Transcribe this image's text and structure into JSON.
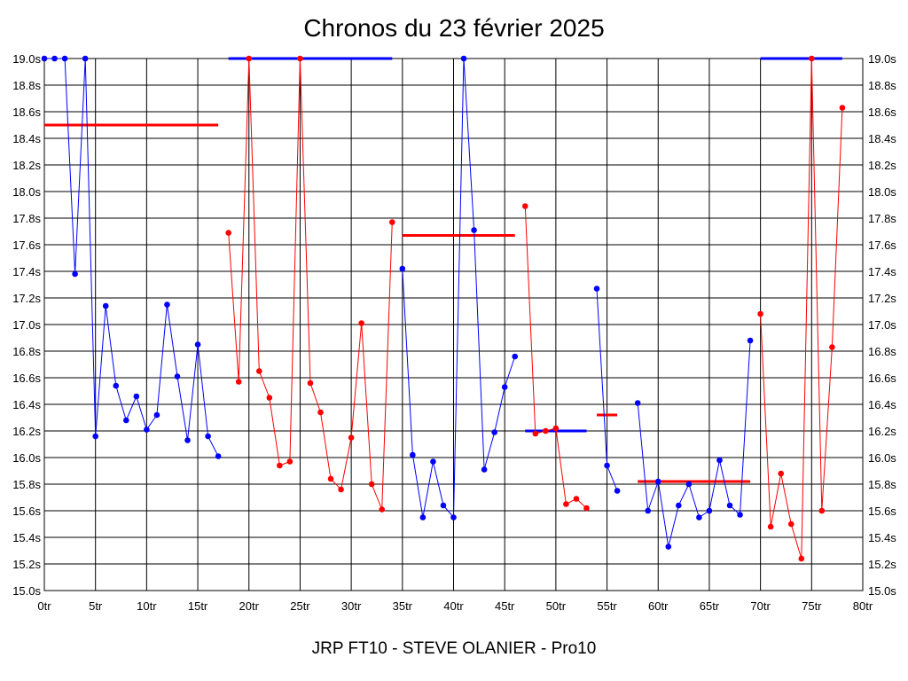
{
  "title": "Chronos du 23 février 2025",
  "footer": "JRP FT10 - STEVE OLANIER - Pro10",
  "chart_data": {
    "type": "line",
    "title": "Chronos du 23 février 2025",
    "xlabel": "",
    "ylabel": "",
    "xlim": [
      0,
      80
    ],
    "ylim": [
      15.0,
      19.0
    ],
    "grid": true,
    "x_ticks": [
      0,
      5,
      10,
      15,
      20,
      25,
      30,
      35,
      40,
      45,
      50,
      55,
      60,
      65,
      70,
      75,
      80
    ],
    "x_tick_labels": [
      "0tr",
      "5tr",
      "10tr",
      "15tr",
      "20tr",
      "25tr",
      "30tr",
      "35tr",
      "40tr",
      "45tr",
      "50tr",
      "55tr",
      "60tr",
      "65tr",
      "70tr",
      "75tr",
      "80tr"
    ],
    "y_ticks": [
      15.0,
      15.2,
      15.4,
      15.6,
      15.8,
      16.0,
      16.2,
      16.4,
      16.6,
      16.8,
      17.0,
      17.2,
      17.4,
      17.6,
      17.8,
      18.0,
      18.2,
      18.4,
      18.6,
      18.8,
      19.0
    ],
    "y_tick_labels": [
      "15.0s",
      "15.2s",
      "15.4s",
      "15.6s",
      "15.8s",
      "16.0s",
      "16.2s",
      "16.4s",
      "16.6s",
      "16.8s",
      "17.0s",
      "17.2s",
      "17.4s",
      "17.6s",
      "17.8s",
      "18.0s",
      "18.2s",
      "18.4s",
      "18.6s",
      "18.8s",
      "19.0s"
    ],
    "colors": {
      "blue": "#0000ff",
      "red": "#ff0000"
    },
    "series": [
      {
        "color": "#0000ff",
        "points": [
          [
            0,
            19.0
          ],
          [
            1,
            19.0
          ],
          [
            2,
            19.0
          ],
          [
            3,
            17.38
          ],
          [
            4,
            19.0
          ],
          [
            5,
            16.16
          ],
          [
            6,
            17.14
          ],
          [
            7,
            16.54
          ],
          [
            8,
            16.28
          ],
          [
            9,
            16.46
          ],
          [
            10,
            16.21
          ],
          [
            11,
            16.32
          ],
          [
            12,
            17.15
          ],
          [
            13,
            16.61
          ],
          [
            14,
            16.13
          ],
          [
            15,
            16.85
          ],
          [
            16,
            16.16
          ],
          [
            17,
            16.01
          ]
        ]
      },
      {
        "color": "#ff0000",
        "points": [
          [
            18,
            17.69
          ],
          [
            19,
            16.57
          ],
          [
            20,
            19.0
          ],
          [
            21,
            16.65
          ],
          [
            22,
            16.45
          ],
          [
            23,
            15.94
          ],
          [
            24,
            15.97
          ],
          [
            25,
            19.0
          ],
          [
            26,
            16.56
          ],
          [
            27,
            16.34
          ],
          [
            28,
            15.84
          ],
          [
            29,
            15.76
          ],
          [
            30,
            16.15
          ],
          [
            31,
            17.01
          ],
          [
            32,
            15.8
          ],
          [
            33,
            15.61
          ],
          [
            34,
            17.77
          ]
        ]
      },
      {
        "color": "#0000ff",
        "points": [
          [
            35,
            17.42
          ],
          [
            36,
            16.02
          ],
          [
            37,
            15.55
          ],
          [
            38,
            15.97
          ],
          [
            39,
            15.64
          ],
          [
            40,
            15.55
          ],
          [
            41,
            19.0
          ],
          [
            42,
            17.71
          ],
          [
            43,
            15.91
          ],
          [
            44,
            16.19
          ],
          [
            45,
            16.53
          ],
          [
            46,
            16.76
          ]
        ]
      },
      {
        "color": "#ff0000",
        "points": [
          [
            47,
            17.89
          ],
          [
            48,
            16.18
          ],
          [
            49,
            16.2
          ],
          [
            50,
            16.22
          ],
          [
            51,
            15.65
          ],
          [
            52,
            15.69
          ],
          [
            53,
            15.62
          ]
        ]
      },
      {
        "color": "#0000ff",
        "points": [
          [
            54,
            17.27
          ],
          [
            55,
            15.94
          ],
          [
            56,
            15.75
          ]
        ]
      },
      {
        "color": "#0000ff",
        "points": [
          [
            58,
            16.41
          ],
          [
            59,
            15.6
          ],
          [
            60,
            15.82
          ],
          [
            61,
            15.33
          ],
          [
            62,
            15.64
          ],
          [
            63,
            15.8
          ],
          [
            64,
            15.55
          ],
          [
            65,
            15.6
          ],
          [
            66,
            15.98
          ],
          [
            67,
            15.64
          ],
          [
            68,
            15.57
          ],
          [
            69,
            16.88
          ]
        ]
      },
      {
        "color": "#ff0000",
        "points": [
          [
            70,
            17.08
          ],
          [
            71,
            15.48
          ],
          [
            72,
            15.88
          ],
          [
            73,
            15.5
          ],
          [
            74,
            15.24
          ],
          [
            75,
            19.0
          ],
          [
            76,
            15.6
          ],
          [
            77,
            16.83
          ],
          [
            78,
            18.63
          ]
        ]
      }
    ],
    "reference_lines": [
      {
        "color": "#ff0000",
        "x_start": 0,
        "x_end": 17,
        "y": 18.5
      },
      {
        "color": "#0000ff",
        "x_start": 18,
        "x_end": 34,
        "y": 19.0
      },
      {
        "color": "#ff0000",
        "x_start": 35,
        "x_end": 46,
        "y": 17.67
      },
      {
        "color": "#0000ff",
        "x_start": 47,
        "x_end": 53,
        "y": 16.2
      },
      {
        "color": "#ff0000",
        "x_start": 54,
        "x_end": 56,
        "y": 16.32
      },
      {
        "color": "#ff0000",
        "x_start": 58,
        "x_end": 69,
        "y": 15.82
      },
      {
        "color": "#0000ff",
        "x_start": 70,
        "x_end": 78,
        "y": 19.0
      }
    ]
  }
}
